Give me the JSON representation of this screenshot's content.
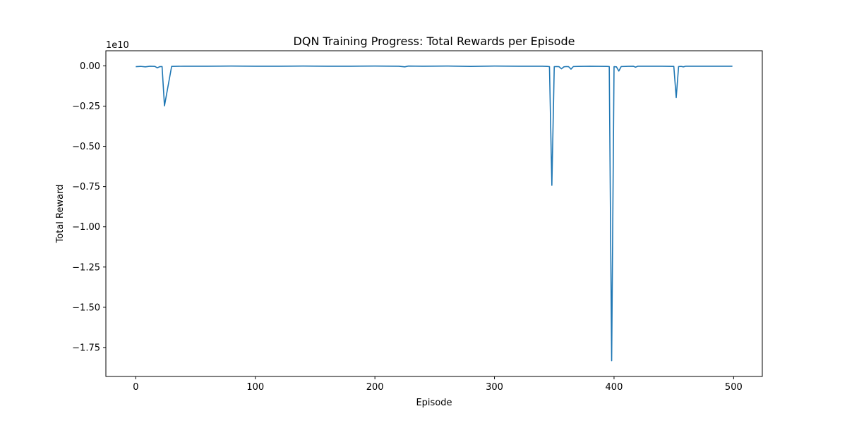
{
  "chart_data": {
    "type": "line",
    "title": "DQN Training Progress: Total Rewards per Episode",
    "xlabel": "Episode",
    "ylabel": "Total Reward",
    "y_scale_label": "1e10",
    "y_scale_factor": 10000000000,
    "xlim": [
      -25,
      524
    ],
    "ylim": [
      -1.93,
      0.094
    ],
    "xticks": [
      0,
      100,
      200,
      300,
      400,
      500
    ],
    "xtick_labels": [
      "0",
      "100",
      "200",
      "300",
      "400",
      "500"
    ],
    "yticks": [
      0.0,
      -0.25,
      -0.5,
      -0.75,
      -1.0,
      -1.25,
      -1.5,
      -1.75
    ],
    "ytick_labels": [
      "0.00",
      "−0.25",
      "−0.50",
      "−0.75",
      "−1.00",
      "−1.25",
      "−1.50",
      "−1.75"
    ],
    "grid": false,
    "legend": "none",
    "line_color": "#1f77b4",
    "series": [
      {
        "x": [
          0,
          4,
          8,
          12,
          16,
          18,
          20,
          22,
          24,
          30,
          40,
          60,
          80,
          100,
          120,
          140,
          160,
          180,
          200,
          220,
          225,
          228,
          240,
          260,
          280,
          300,
          320,
          340,
          344,
          346,
          348,
          350,
          352,
          354,
          356,
          358,
          360,
          362,
          364,
          366,
          370,
          380,
          394,
          396,
          398,
          400,
          402,
          404,
          406,
          410,
          416,
          418,
          420,
          430,
          440,
          450,
          452,
          454,
          456,
          458,
          460,
          470,
          480,
          490,
          499
        ],
        "values": [
          -0.005,
          -0.003,
          -0.006,
          -0.002,
          -0.003,
          -0.012,
          -0.005,
          -0.004,
          -0.248,
          -0.003,
          -0.002,
          -0.002,
          -0.001,
          -0.002,
          -0.002,
          -0.001,
          -0.002,
          -0.002,
          -0.001,
          -0.002,
          -0.006,
          -0.001,
          -0.002,
          -0.001,
          -0.003,
          -0.001,
          -0.002,
          -0.002,
          -0.003,
          -0.005,
          -0.742,
          -0.005,
          -0.004,
          -0.005,
          -0.018,
          -0.006,
          -0.004,
          -0.005,
          -0.02,
          -0.004,
          -0.003,
          -0.002,
          -0.003,
          -0.004,
          -1.832,
          -0.005,
          -0.006,
          -0.032,
          -0.004,
          -0.003,
          -0.002,
          -0.008,
          -0.002,
          -0.002,
          -0.002,
          -0.003,
          -0.197,
          -0.004,
          -0.003,
          -0.006,
          -0.002,
          -0.002,
          -0.002,
          -0.002,
          -0.002
        ]
      }
    ]
  }
}
